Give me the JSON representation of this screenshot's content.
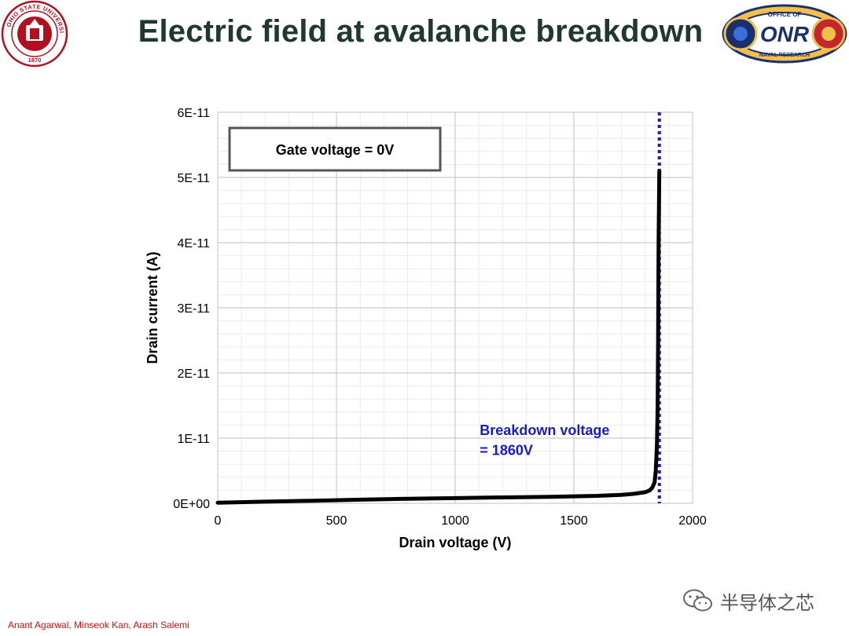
{
  "slide": {
    "title": "Electric field at avalanche breakdown",
    "footer": "Anant Agarwal, Minseok Kan, Arash Salemi",
    "watermark": "半导体之芯"
  },
  "logos": {
    "left": {
      "name": "ohio-state-university-seal",
      "text": "OHIO STATE UNIVERSITY 1870",
      "color": "#b01020"
    },
    "right": {
      "name": "office-of-naval-research-logo",
      "text": "OFFICE OF ONR NAVAL RESEARCH",
      "color": "#1a2f6e"
    }
  },
  "chart_data": {
    "type": "line",
    "title": "",
    "xlabel": "Drain voltage (V)",
    "ylabel": "Drain current (A)",
    "xlim": [
      0,
      2000
    ],
    "ylim": [
      0,
      6e-11
    ],
    "x_ticks": [
      0,
      500,
      1000,
      1500,
      2000
    ],
    "x_tick_labels": [
      "0",
      "500",
      "1000",
      "1500",
      "2000"
    ],
    "y_ticks": [
      0,
      1e-11,
      2e-11,
      3e-11,
      4e-11,
      5e-11,
      6e-11
    ],
    "y_tick_labels": [
      "0E+00",
      "1E-11",
      "2E-11",
      "3E-11",
      "4E-11",
      "5E-11",
      "6E-11"
    ],
    "grid": true,
    "minor_grid": true,
    "series": [
      {
        "color": "#000000",
        "x": [
          0,
          200,
          400,
          600,
          800,
          1000,
          1200,
          1400,
          1600,
          1700,
          1750,
          1800,
          1820,
          1830,
          1840,
          1845,
          1850,
          1853,
          1855,
          1857,
          1860
        ],
        "y": [
          1e-13,
          2.5e-13,
          4e-13,
          5.5e-13,
          7e-13,
          8e-13,
          9e-13,
          1e-12,
          1.15e-12,
          1.3e-12,
          1.45e-12,
          1.7e-12,
          2e-12,
          2.4e-12,
          3.2e-12,
          5e-12,
          9e-12,
          1.5e-11,
          2.5e-11,
          4e-11,
          5.1e-11
        ]
      }
    ],
    "reference_line": {
      "x": 1860,
      "color": "#1a1acc",
      "style": "dotted"
    },
    "annotations": [
      {
        "text": "Breakdown voltage",
        "color": "#1a1acc",
        "x": 1150,
        "y": 1.05e-11
      },
      {
        "text": "= 1860V",
        "color": "#1a1acc",
        "x": 1150,
        "y": 7.4e-12
      }
    ],
    "legend_box": {
      "text": "Gate voltage = 0V",
      "x": 50,
      "y": 5.5e-11
    }
  }
}
